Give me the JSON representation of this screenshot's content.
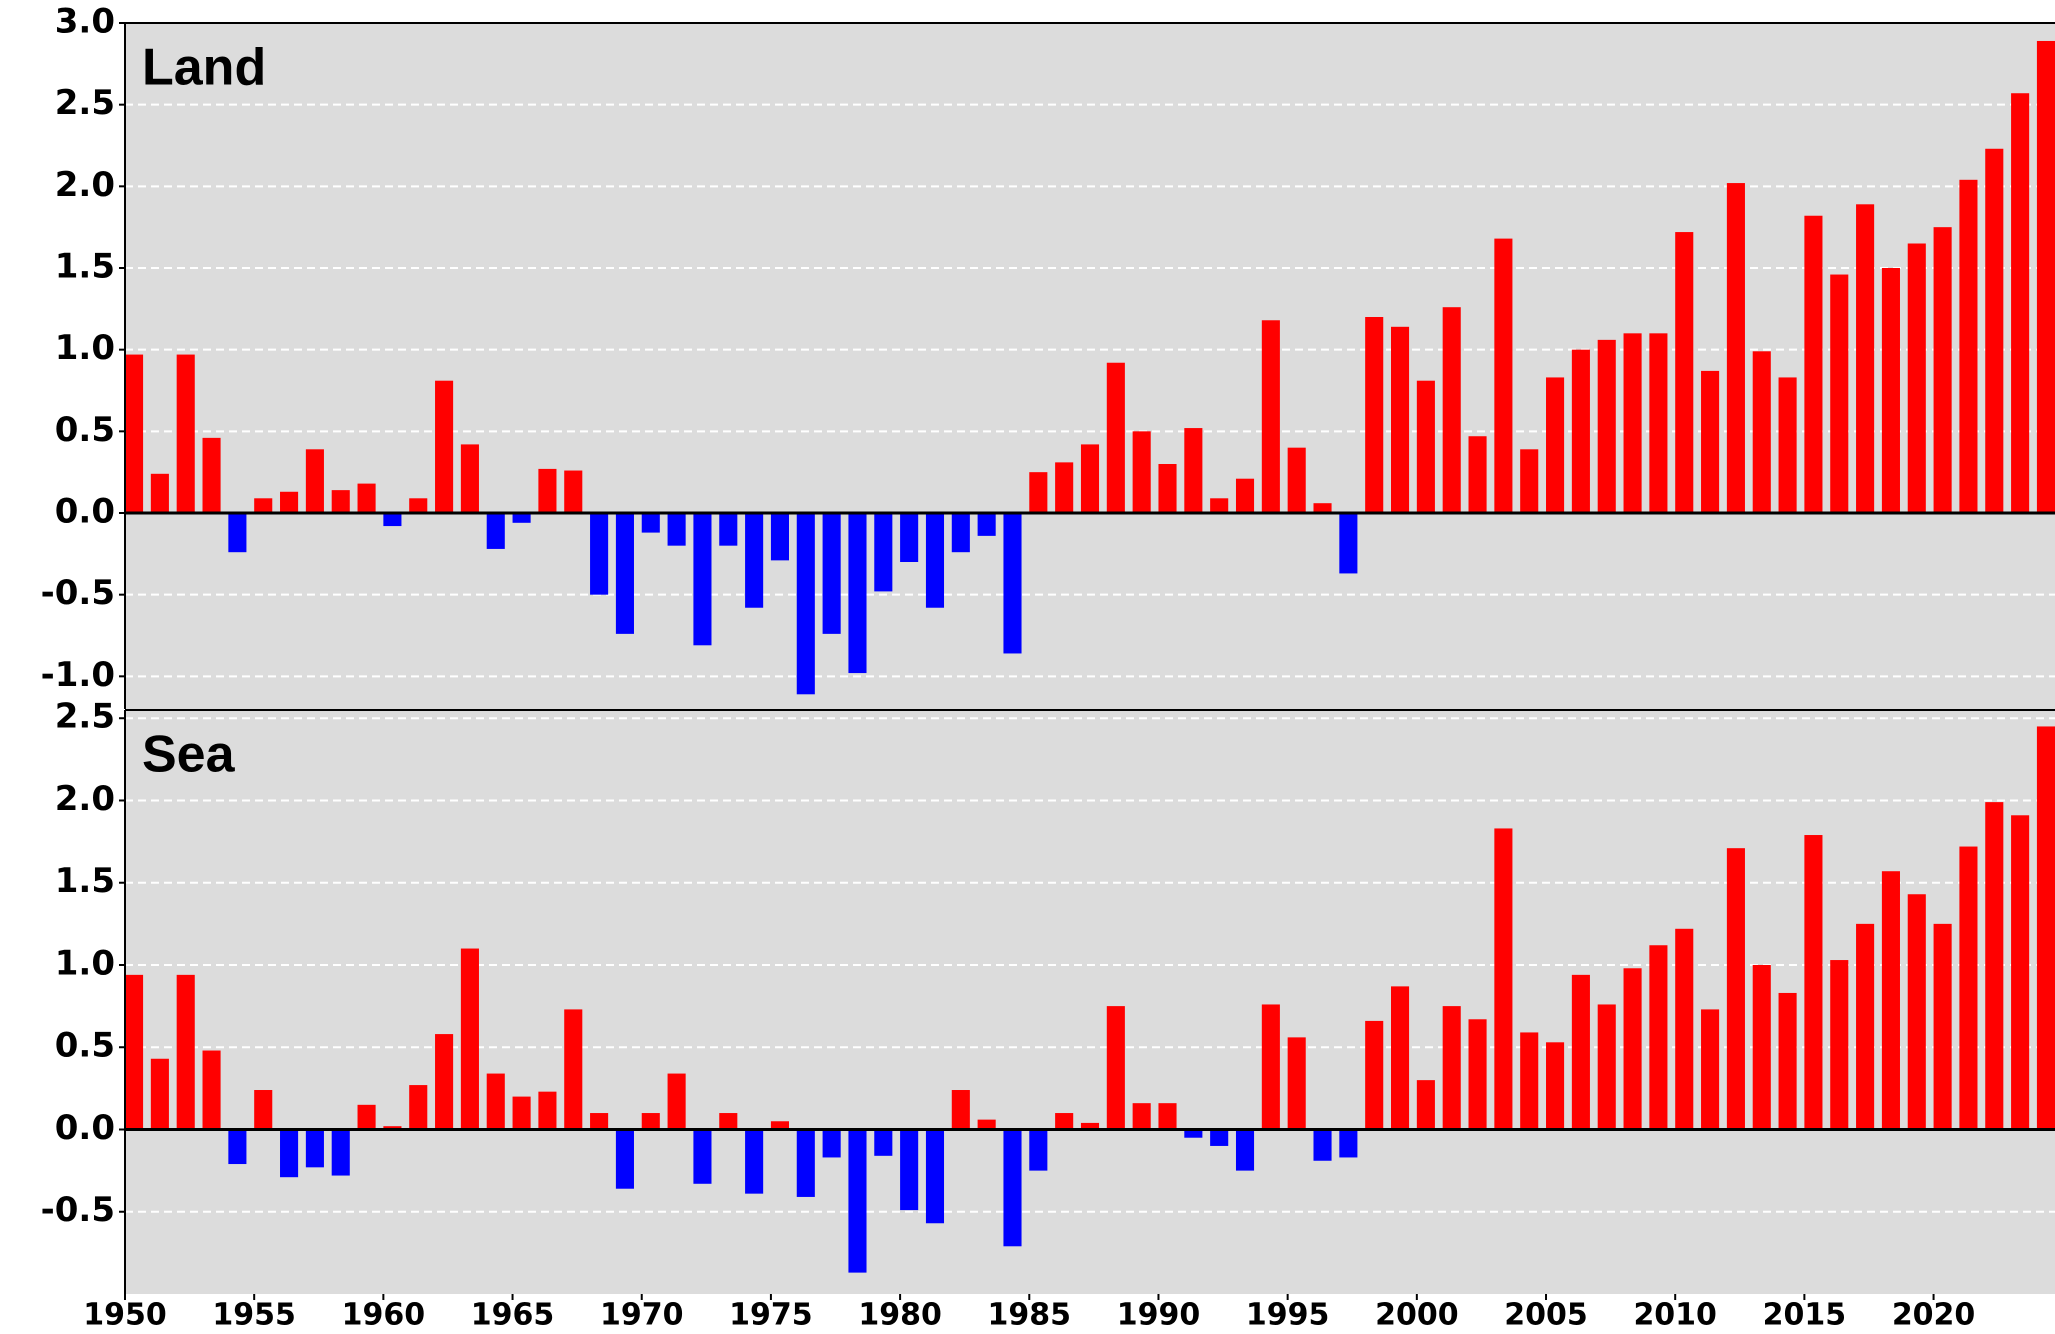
{
  "chart_data": [
    {
      "type": "bar",
      "title": "Land",
      "pos_color": "#ff0000",
      "neg_color": "#0000ff",
      "grid": true,
      "x": [
        1950,
        1951,
        1952,
        1953,
        1954,
        1955,
        1956,
        1957,
        1958,
        1959,
        1960,
        1961,
        1962,
        1963,
        1964,
        1965,
        1966,
        1967,
        1968,
        1969,
        1970,
        1971,
        1972,
        1973,
        1974,
        1975,
        1976,
        1977,
        1978,
        1979,
        1980,
        1981,
        1982,
        1983,
        1984,
        1985,
        1986,
        1987,
        1988,
        1989,
        1990,
        1991,
        1992,
        1993,
        1994,
        1995,
        1996,
        1997,
        1998,
        1999,
        2000,
        2001,
        2002,
        2003,
        2004,
        2005,
        2006,
        2007,
        2008,
        2009,
        2010,
        2011,
        2012,
        2013,
        2014,
        2015,
        2016,
        2017,
        2018,
        2019,
        2020,
        2021,
        2022,
        2023,
        2024
      ],
      "values": [
        0.97,
        0.24,
        0.97,
        0.46,
        -0.24,
        0.09,
        0.13,
        0.39,
        0.14,
        0.18,
        -0.08,
        0.09,
        0.81,
        0.42,
        -0.22,
        -0.06,
        0.27,
        0.26,
        -0.5,
        -0.74,
        -0.12,
        -0.2,
        -0.81,
        -0.2,
        -0.58,
        -0.29,
        -1.11,
        -0.74,
        -0.98,
        -0.48,
        -0.3,
        -0.58,
        -0.24,
        -0.14,
        -0.86,
        0.25,
        0.31,
        0.42,
        0.92,
        0.5,
        0.3,
        0.52,
        0.09,
        0.21,
        1.18,
        0.4,
        0.06,
        -0.37,
        1.2,
        1.14,
        0.81,
        1.26,
        0.47,
        1.68,
        0.39,
        0.83,
        1.0,
        1.06,
        1.1,
        1.1,
        1.72,
        0.87,
        2.02,
        0.99,
        0.83,
        1.82,
        1.46,
        1.89,
        1.5,
        1.65,
        1.75,
        2.04,
        2.23,
        2.57,
        2.89
      ],
      "xlim": [
        1950,
        2024.7
      ],
      "ylim": [
        -1.2,
        3.0
      ],
      "yticks": [
        {
          "value": -1.0,
          "label": "-1.0"
        },
        -0.5,
        {
          "value": 0,
          "label": "0.0"
        },
        0.5,
        {
          "value": 1,
          "label": "1.0"
        },
        1.5,
        {
          "value": 2,
          "label": "2.0"
        },
        2.5,
        {
          "value": 3,
          "label": "3.0"
        }
      ]
    },
    {
      "type": "bar",
      "title": "Sea",
      "pos_color": "#ff0000",
      "neg_color": "#0000ff",
      "grid": true,
      "x": [
        1950,
        1951,
        1952,
        1953,
        1954,
        1955,
        1956,
        1957,
        1958,
        1959,
        1960,
        1961,
        1962,
        1963,
        1964,
        1965,
        1966,
        1967,
        1968,
        1969,
        1970,
        1971,
        1972,
        1973,
        1974,
        1975,
        1976,
        1977,
        1978,
        1979,
        1980,
        1981,
        1982,
        1983,
        1984,
        1985,
        1986,
        1987,
        1988,
        1989,
        1990,
        1991,
        1992,
        1993,
        1994,
        1995,
        1996,
        1997,
        1998,
        1999,
        2000,
        2001,
        2002,
        2003,
        2004,
        2005,
        2006,
        2007,
        2008,
        2009,
        2010,
        2011,
        2012,
        2013,
        2014,
        2015,
        2016,
        2017,
        2018,
        2019,
        2020,
        2021,
        2022,
        2023,
        2024
      ],
      "values": [
        0.94,
        0.43,
        0.94,
        0.48,
        -0.21,
        0.24,
        -0.29,
        -0.23,
        -0.28,
        0.15,
        0.02,
        0.27,
        0.58,
        1.1,
        0.34,
        0.2,
        0.23,
        0.73,
        0.1,
        -0.36,
        0.1,
        0.34,
        -0.33,
        0.1,
        -0.39,
        0.05,
        -0.41,
        -0.17,
        -0.87,
        -0.16,
        -0.49,
        -0.57,
        0.24,
        0.06,
        -0.71,
        -0.25,
        0.1,
        0.04,
        0.75,
        0.16,
        0.16,
        -0.05,
        -0.1,
        -0.25,
        0.76,
        0.56,
        -0.19,
        -0.17,
        0.66,
        0.87,
        0.3,
        0.75,
        0.67,
        1.83,
        0.59,
        0.53,
        0.94,
        0.76,
        0.98,
        1.12,
        1.22,
        0.73,
        1.71,
        1.0,
        0.83,
        1.79,
        1.03,
        1.25,
        1.57,
        1.43,
        1.25,
        1.72,
        1.99,
        1.91,
        2.45
      ],
      "xlim": [
        1950,
        2024.7
      ],
      "ylim": [
        -1.0,
        2.55
      ],
      "xticks": [
        1950,
        1955,
        1960,
        1965,
        1970,
        1975,
        1980,
        1985,
        1990,
        1995,
        2000,
        2005,
        2010,
        2015,
        2020
      ],
      "yticks": [
        -0.5,
        {
          "value": 0,
          "label": "0.0"
        },
        0.5,
        {
          "value": 1,
          "label": "1.0"
        },
        1.5,
        {
          "value": 2,
          "label": "2.0"
        },
        2.5
      ]
    }
  ]
}
